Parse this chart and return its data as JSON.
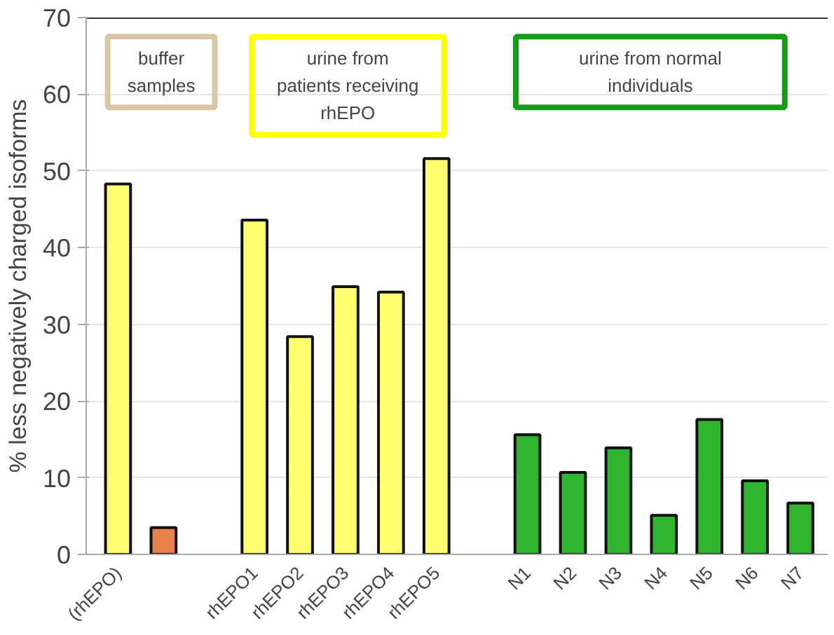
{
  "chart_data": {
    "type": "bar",
    "ylabel": "% less negatively charged isoforms",
    "categories": [
      "(rhEPO)",
      null,
      null,
      "rhEPO1",
      "rhEPO2",
      "rhEPO3",
      "rhEPO4",
      "rhEPO5",
      null,
      "N1",
      "N2",
      "N3",
      "N4",
      "N5",
      "N6",
      "N7"
    ],
    "values": [
      48.3,
      3.5,
      null,
      43.6,
      28.4,
      34.9,
      34.2,
      51.6,
      null,
      15.6,
      10.7,
      13.9,
      5.1,
      17.6,
      9.6,
      6.7
    ],
    "colors": [
      "#ffff70",
      "#e8804a",
      null,
      "#ffff70",
      "#ffff70",
      "#ffff70",
      "#ffff70",
      "#ffff70",
      null,
      "#2fb52f",
      "#2fb52f",
      "#2fb52f",
      "#2fb52f",
      "#2fb52f",
      "#2fb52f",
      "#2fb52f"
    ],
    "ylim": [
      0,
      70
    ],
    "yticks": [
      0,
      10,
      20,
      30,
      40,
      50,
      60,
      70
    ],
    "grid": "y",
    "annotations": [
      "buffer\nsamples",
      "urine from\npatients receiving\nrhEPO",
      "urine from normal\nindividuals"
    ]
  }
}
